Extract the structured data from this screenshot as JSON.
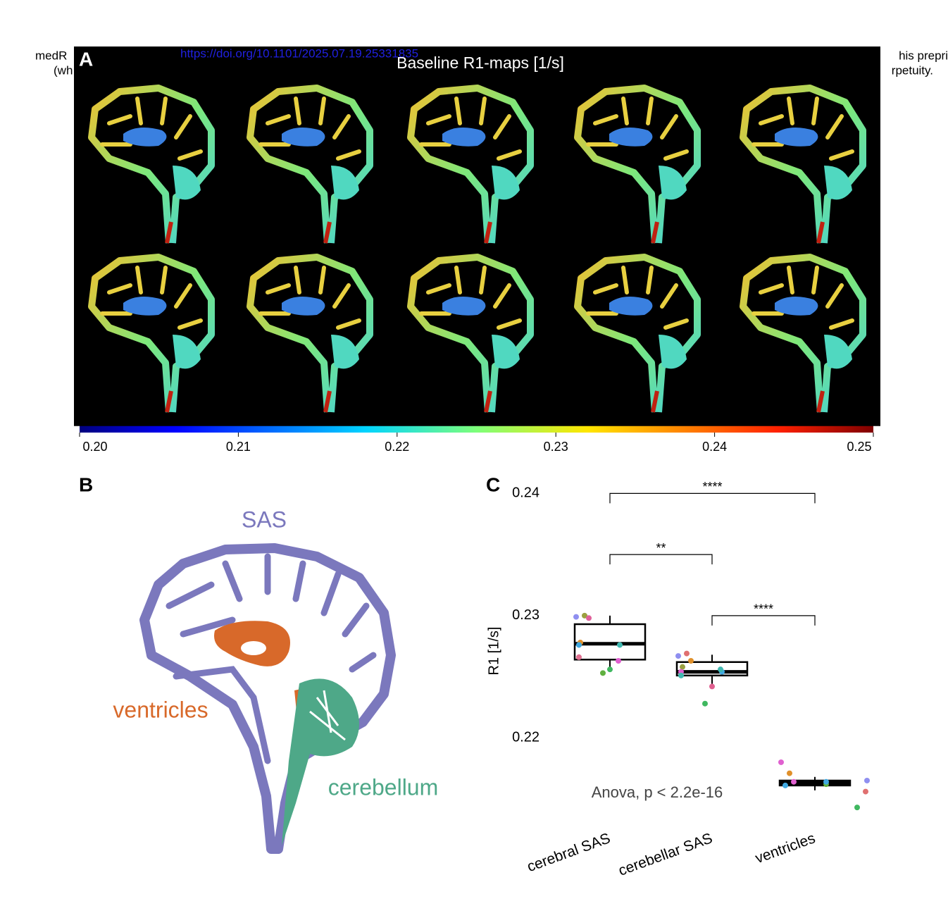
{
  "header": {
    "left1": "medR",
    "left2": "(wh",
    "doi": "https://doi.org/10.1101/2025.07.19.25331835",
    "right1": "his prepri",
    "right2": "rpetuity."
  },
  "panel_a": {
    "label": "A",
    "title": "Baseline R1-maps [1/s]",
    "colorbar": {
      "lim": [
        0.2,
        0.25
      ],
      "ticks": [
        {
          "value": 0.2,
          "label": "0.20"
        },
        {
          "value": 0.21,
          "label": "0.21"
        },
        {
          "value": 0.22,
          "label": "0.22"
        },
        {
          "value": 0.23,
          "label": "0.23"
        },
        {
          "value": 0.24,
          "label": "0.24"
        },
        {
          "value": 0.25,
          "label": "0.25"
        }
      ]
    }
  },
  "panel_b": {
    "label": "B",
    "regions": [
      {
        "label": "SAS",
        "color": "#7b78bd"
      },
      {
        "label": "ventricles",
        "color": "#d8692a"
      },
      {
        "label": "cerebellum",
        "color": "#4ea888"
      }
    ]
  },
  "chart_data": {
    "type": "box",
    "label": "C",
    "ylabel": "R1 [1/s]",
    "annotation": "Anova, p < 2.2e-16",
    "categories": [
      "cerebral SAS",
      "cerebellar SAS",
      "ventricles"
    ],
    "boxes": [
      {
        "whislo": 0.2257,
        "q1": 0.2264,
        "median": 0.2277,
        "q3": 0.2293,
        "whishi": 0.23
      },
      {
        "whislo": 0.2243,
        "q1": 0.2251,
        "median": 0.2254,
        "q3": 0.2262,
        "whishi": 0.2268
      },
      {
        "whislo": 0.2157,
        "q1": 0.2161,
        "median": 0.2163,
        "q3": 0.2165,
        "whishi": 0.2168
      }
    ],
    "points": [
      {
        "values": [
          0.2299,
          0.23,
          0.2298,
          0.2278,
          0.2276,
          0.2276,
          0.2266,
          0.2263,
          0.2256,
          0.2253
        ],
        "colors": [
          "#8f8ff0",
          "#9aa040",
          "#e0609a",
          "#e0902a",
          "#40a8e0",
          "#40b8b0",
          "#e07090",
          "#e060d0",
          "#40b860",
          "#60b040"
        ]
      },
      {
        "values": [
          0.2267,
          0.2269,
          0.2263,
          0.2258,
          0.2254,
          0.2254,
          0.2251,
          0.2256,
          0.2242,
          0.2228
        ],
        "colors": [
          "#8f8ff0",
          "#e07070",
          "#e0902a",
          "#9aa040",
          "#e060d0",
          "#40a8e0",
          "#40b8b0",
          "#40b8b0",
          "#e06090",
          "#40b860"
        ]
      },
      {
        "values": [
          0.218,
          0.2171,
          0.2164,
          0.2161,
          0.2162,
          0.2165,
          0.2164,
          0.2156,
          0.2143
        ],
        "colors": [
          "#e060d0",
          "#e0902a",
          "#e060d0",
          "#40a8e0",
          "#60b040",
          "#8f8ff0",
          "#40a8e0",
          "#e07070",
          "#40b860"
        ]
      }
    ],
    "brackets": [
      {
        "from": 0,
        "to": 2,
        "y": 0.24,
        "label": "****"
      },
      {
        "from": 0,
        "to": 1,
        "y": 0.235,
        "label": "**"
      },
      {
        "from": 1,
        "to": 2,
        "y": 0.23,
        "label": "****"
      }
    ],
    "ylim": [
      0.2135,
      0.2406
    ],
    "yticks": [
      0.22,
      0.23,
      0.24
    ]
  }
}
